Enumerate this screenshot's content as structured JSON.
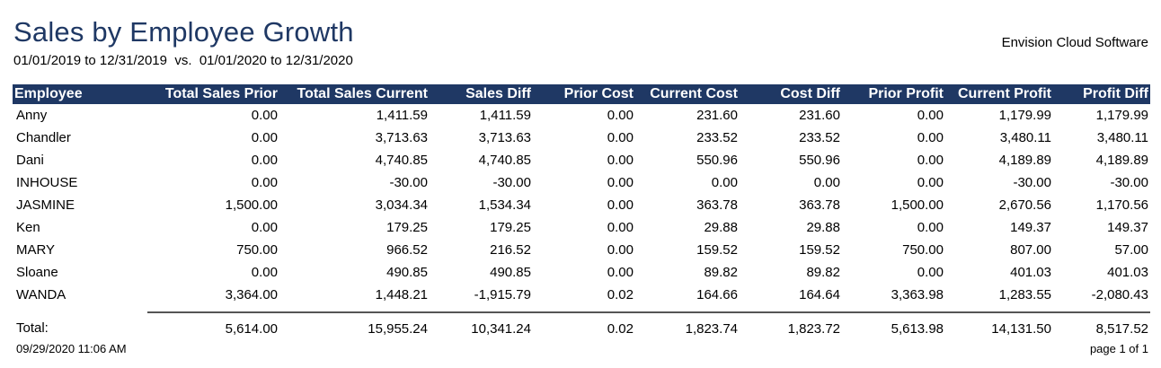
{
  "report": {
    "title": "Sales by Employee Growth",
    "subtitle": "01/01/2019 to 12/31/2019  vs.  01/01/2020 to 12/31/2020",
    "company": "Envision Cloud Software",
    "printed_at": "09/29/2020 11:06 AM",
    "page": "page 1 of 1",
    "header_color": "#1f3864"
  },
  "table": {
    "columns": [
      "Employee",
      "Total Sales Prior",
      "Total Sales Current",
      "Sales Diff",
      "Prior Cost",
      "Current Cost",
      "Cost Diff",
      "Prior Profit",
      "Current Profit",
      "Profit Diff"
    ],
    "rows": [
      [
        "Anny",
        "0.00",
        "1,411.59",
        "1,411.59",
        "0.00",
        "231.60",
        "231.60",
        "0.00",
        "1,179.99",
        "1,179.99"
      ],
      [
        "Chandler",
        "0.00",
        "3,713.63",
        "3,713.63",
        "0.00",
        "233.52",
        "233.52",
        "0.00",
        "3,480.11",
        "3,480.11"
      ],
      [
        "Dani",
        "0.00",
        "4,740.85",
        "4,740.85",
        "0.00",
        "550.96",
        "550.96",
        "0.00",
        "4,189.89",
        "4,189.89"
      ],
      [
        "INHOUSE",
        "0.00",
        "-30.00",
        "-30.00",
        "0.00",
        "0.00",
        "0.00",
        "0.00",
        "-30.00",
        "-30.00"
      ],
      [
        "JASMINE",
        "1,500.00",
        "3,034.34",
        "1,534.34",
        "0.00",
        "363.78",
        "363.78",
        "1,500.00",
        "2,670.56",
        "1,170.56"
      ],
      [
        "Ken",
        "0.00",
        "179.25",
        "179.25",
        "0.00",
        "29.88",
        "29.88",
        "0.00",
        "149.37",
        "149.37"
      ],
      [
        "MARY",
        "750.00",
        "966.52",
        "216.52",
        "0.00",
        "159.52",
        "159.52",
        "750.00",
        "807.00",
        "57.00"
      ],
      [
        "Sloane",
        "0.00",
        "490.85",
        "490.85",
        "0.00",
        "89.82",
        "89.82",
        "0.00",
        "401.03",
        "401.03"
      ],
      [
        "WANDA",
        "3,364.00",
        "1,448.21",
        "-1,915.79",
        "0.02",
        "164.66",
        "164.64",
        "3,363.98",
        "1,283.55",
        "-2,080.43"
      ]
    ],
    "totals": [
      "Total:",
      "5,614.00",
      "15,955.24",
      "10,341.24",
      "0.02",
      "1,823.74",
      "1,823.72",
      "5,613.98",
      "14,131.50",
      "8,517.52"
    ]
  }
}
